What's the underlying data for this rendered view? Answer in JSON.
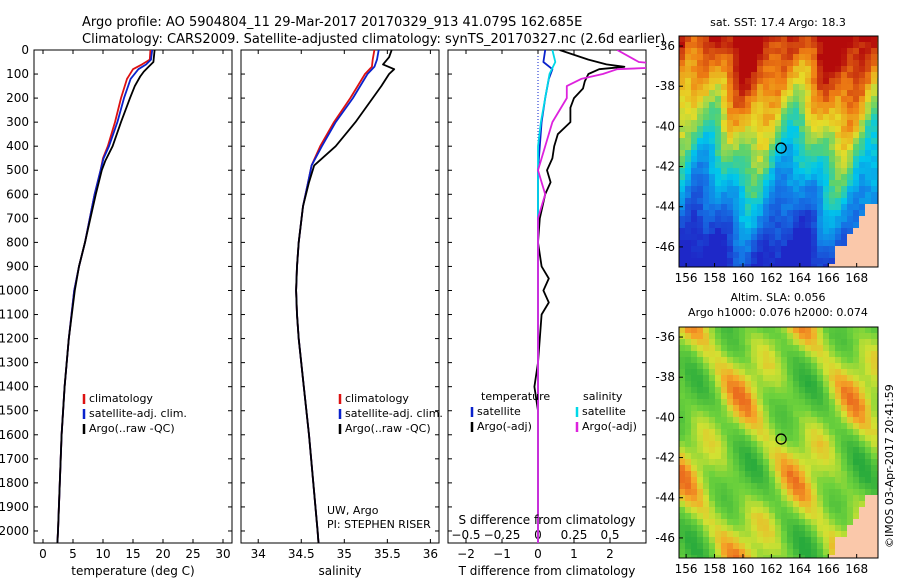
{
  "header": {
    "line1": "Argo profile: AO 5904804_11 29-Mar-2017 20170329_913 41.079S 162.685E",
    "line2": "Climatology: CARS2009. Satellite-adjusted climatology: synTS_20170327.nc (2.6d earlier)"
  },
  "colors": {
    "climatology": "#dd1111",
    "satellite": "#0a22cc",
    "argo": "#000000",
    "salinity_sat": "#00d8e8",
    "salinity_argo": "#dd22dd"
  },
  "depth_axis": {
    "ylim": [
      0,
      2050
    ],
    "ticks": [
      0,
      100,
      200,
      300,
      400,
      500,
      600,
      700,
      800,
      900,
      1000,
      1100,
      1200,
      1300,
      1400,
      1500,
      1600,
      1700,
      1800,
      1900,
      2000
    ],
    "inverted": true
  },
  "chart_data": [
    {
      "type": "line",
      "name": "temperature-profile",
      "xlabel": "temperature (deg C)",
      "xlim": [
        -1.5,
        31.5
      ],
      "xticks": [
        0,
        5,
        10,
        15,
        20,
        25,
        30
      ],
      "legend_position": "bottom-right",
      "legend": [
        "climatology",
        "satellite-adj. clim.",
        "Argo(..raw -QC)"
      ],
      "series": [
        {
          "name": "climatology",
          "color": "#dd1111",
          "depth": [
            0,
            40,
            60,
            80,
            120,
            200,
            300,
            400,
            450,
            500,
            600,
            700,
            800,
            900,
            1000,
            1200,
            1400,
            1600,
            1800,
            2000,
            2050
          ],
          "values": [
            17.9,
            17.8,
            16.5,
            15.0,
            14.0,
            13.0,
            12.0,
            10.8,
            10.0,
            9.6,
            8.6,
            7.8,
            7.0,
            6.0,
            5.2,
            4.3,
            3.6,
            3.1,
            2.8,
            2.5,
            2.4
          ]
        },
        {
          "name": "satellite-adj. clim.",
          "color": "#0a22cc",
          "depth": [
            0,
            40,
            60,
            80,
            120,
            200,
            300,
            400,
            450,
            500,
            600,
            700,
            800,
            900,
            1000,
            1200,
            1400,
            1600,
            1800,
            2000,
            2050
          ],
          "values": [
            18.2,
            18.0,
            17.2,
            15.9,
            14.6,
            13.5,
            12.4,
            11.0,
            10.1,
            9.6,
            8.6,
            7.8,
            7.0,
            6.0,
            5.2,
            4.3,
            3.6,
            3.1,
            2.8,
            2.5,
            2.4
          ]
        },
        {
          "name": "Argo(..raw -QC)",
          "color": "#000000",
          "depth": [
            0,
            50,
            70,
            90,
            110,
            150,
            200,
            300,
            400,
            460,
            500,
            600,
            700,
            800,
            900,
            1000,
            1200,
            1400,
            1600,
            1800,
            2000,
            2050
          ],
          "values": [
            18.6,
            18.4,
            17.6,
            16.8,
            16.2,
            15.3,
            14.5,
            13.0,
            11.6,
            10.4,
            9.8,
            8.8,
            7.9,
            7.0,
            6.0,
            5.3,
            4.3,
            3.6,
            3.1,
            2.8,
            2.5,
            2.4
          ]
        }
      ]
    },
    {
      "type": "line",
      "name": "salinity-profile",
      "xlabel": "salinity",
      "xlim": [
        33.8,
        36.1
      ],
      "xticks": [
        34,
        34.5,
        35,
        35.5,
        36
      ],
      "legend_position": "bottom-right",
      "legend": [
        "climatology",
        "satellite-adj. clim.",
        "Argo(..raw -QC)"
      ],
      "annotation": [
        "UW, Argo",
        "PI: STEPHEN RISER"
      ],
      "series": [
        {
          "name": "climatology",
          "color": "#dd1111",
          "depth": [
            0,
            40,
            70,
            100,
            200,
            300,
            400,
            480,
            550,
            650,
            800,
            900,
            1000,
            1100,
            1200,
            1400,
            1600,
            1800,
            2000,
            2050
          ],
          "values": [
            35.35,
            35.33,
            35.32,
            35.24,
            35.07,
            34.88,
            34.72,
            34.62,
            34.58,
            34.52,
            34.47,
            34.45,
            34.44,
            34.45,
            34.47,
            34.53,
            34.59,
            34.64,
            34.69,
            34.7
          ]
        },
        {
          "name": "satellite-adj. clim.",
          "color": "#0a22cc",
          "depth": [
            0,
            40,
            70,
            100,
            200,
            300,
            400,
            480,
            550,
            650,
            800,
            900,
            1000,
            1100,
            1200,
            1400,
            1600,
            1800,
            2000,
            2050
          ],
          "values": [
            35.4,
            35.38,
            35.35,
            35.27,
            35.1,
            34.9,
            34.74,
            34.62,
            34.58,
            34.52,
            34.47,
            34.45,
            34.44,
            34.45,
            34.47,
            34.53,
            34.59,
            34.64,
            34.69,
            34.7
          ]
        },
        {
          "name": "Argo(..raw -QC)",
          "color": "#000000",
          "depth": [
            0,
            30,
            60,
            80,
            100,
            150,
            200,
            300,
            400,
            480,
            550,
            650,
            800,
            900,
            1000,
            1100,
            1200,
            1400,
            1600,
            1800,
            2000,
            2050
          ],
          "values": [
            35.55,
            35.52,
            35.45,
            35.58,
            35.52,
            35.43,
            35.33,
            35.13,
            34.9,
            34.65,
            34.59,
            34.52,
            34.47,
            34.45,
            34.44,
            34.45,
            34.47,
            34.53,
            34.59,
            34.64,
            34.69,
            34.7
          ]
        }
      ]
    },
    {
      "type": "line",
      "name": "difference-profile",
      "xlabel": "T difference from climatology",
      "top_xlabel": "S difference from climatology",
      "xlim": [
        -2.5,
        3
      ],
      "xticks": [
        -2,
        -1,
        0,
        1,
        2
      ],
      "top_xticks": [
        -0.5,
        -0.25,
        0,
        0.25,
        0.5
      ],
      "top_xticklabels": [
        "−0.5",
        "−0.25",
        "0",
        "0.25",
        "0.5"
      ],
      "xticklabels": [
        "−2",
        "−1",
        "0",
        "1",
        "2"
      ],
      "legend_position": "bottom-right",
      "legend_temperature_title": "temperature",
      "legend_salinity_title": "salinity",
      "legend": [
        "satellite",
        "Argo(-adj)",
        "satellite",
        "Argo(-adj)"
      ],
      "series": [
        {
          "name": "T satellite",
          "color": "#0a22cc",
          "depth": [
            0,
            50,
            80,
            120,
            200,
            300,
            400,
            500,
            600,
            800,
            1000,
            1200,
            1500,
            2050
          ],
          "values": [
            0.2,
            0.15,
            0.4,
            0.3,
            0.2,
            0.1,
            0.05,
            0.0,
            0.0,
            0.0,
            0.0,
            0.0,
            0.0,
            0.0
          ]
        },
        {
          "name": "T Argo(-adj)",
          "color": "#000000",
          "depth": [
            0,
            40,
            60,
            70,
            80,
            100,
            130,
            160,
            200,
            240,
            300,
            350,
            400,
            450,
            500,
            550,
            600,
            700,
            800,
            900,
            950,
            1000,
            1050,
            1100,
            1200,
            1300,
            1400,
            1500,
            1600,
            2050
          ],
          "values": [
            0.6,
            1.4,
            1.9,
            2.4,
            1.7,
            1.4,
            1.3,
            1.25,
            1.0,
            0.9,
            0.9,
            0.55,
            0.45,
            0.4,
            0.25,
            0.35,
            0.2,
            0.05,
            0.0,
            0.1,
            0.3,
            0.15,
            0.3,
            0.1,
            0.05,
            0.0,
            -0.1,
            0.0,
            0.0,
            0.0
          ]
        },
        {
          "name": "S satellite",
          "color": "#00d8e8",
          "depth": [
            0,
            50,
            100,
            200,
            300,
            400,
            500,
            600,
            800,
            1000,
            1500,
            2050
          ],
          "values": [
            0.1,
            0.12,
            0.08,
            0.05,
            0.02,
            0.0,
            0.0,
            0.0,
            0.0,
            0.0,
            0.0,
            0.0
          ]
        },
        {
          "name": "S Argo(-adj)",
          "color": "#dd22dd",
          "depth": [
            0,
            50,
            60,
            70,
            80,
            100,
            120,
            150,
            200,
            300,
            400,
            500,
            600,
            700,
            800,
            1000,
            1500,
            2050
          ],
          "values": [
            0.55,
            0.7,
            0.9,
            0.95,
            0.55,
            0.45,
            0.3,
            0.2,
            0.2,
            0.1,
            0.05,
            0.0,
            0.05,
            0.0,
            0.0,
            0.0,
            0.0,
            0.0
          ]
        }
      ]
    },
    {
      "type": "heatmap",
      "name": "sst-map",
      "title": "sat. SST: 17.4 Argo: 18.3",
      "xlim": [
        155.5,
        169.5
      ],
      "ylim": [
        -47,
        -35.5
      ],
      "xticks": [
        156,
        158,
        160,
        162,
        164,
        166,
        168
      ],
      "yticks": [
        -36,
        -38,
        -40,
        -42,
        -44,
        -46
      ],
      "float_position": {
        "lon": 162.685,
        "lat": -41.079
      }
    },
    {
      "type": "heatmap",
      "name": "sla-map",
      "title": "Altim. SLA: 0.056",
      "subtitle": "Argo h1000: 0.076 h2000: 0.074",
      "xlim": [
        155.5,
        169.5
      ],
      "ylim": [
        -47,
        -35.5
      ],
      "xticks": [
        156,
        158,
        160,
        162,
        164,
        166,
        168
      ],
      "yticks": [
        -36,
        -38,
        -40,
        -42,
        -44,
        -46
      ],
      "float_position": {
        "lon": 162.685,
        "lat": -41.079
      }
    }
  ],
  "credit": "©IMOS 03-Apr-2017 20:41:59"
}
